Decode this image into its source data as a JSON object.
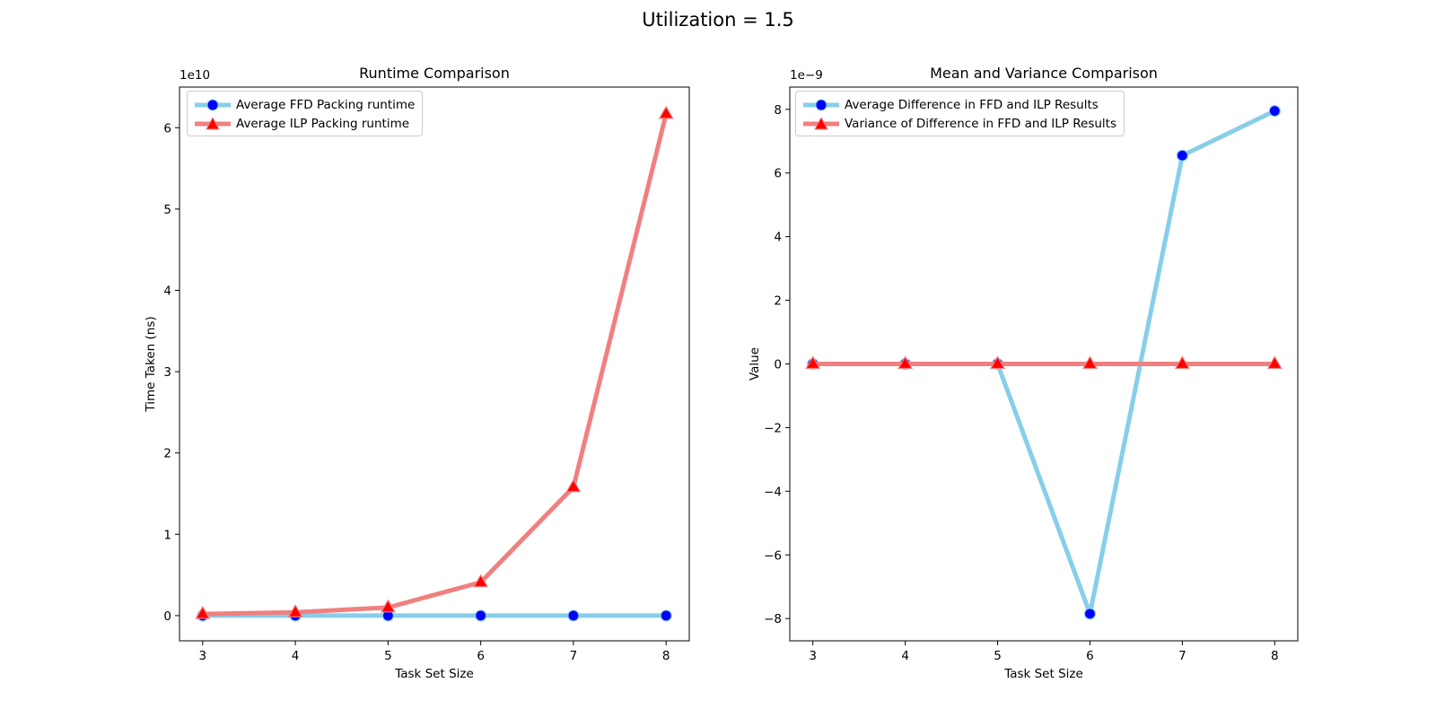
{
  "figure": {
    "title": "Utilization = 1.5"
  },
  "chart_data": [
    {
      "type": "line",
      "title": "Runtime Comparison",
      "xlabel": "Task Set Size",
      "ylabel": "Time Taken (ns)",
      "y_offset_label": "1e10",
      "y_scale": 10000000000.0,
      "x": [
        3,
        4,
        5,
        6,
        7,
        8
      ],
      "xlim": [
        2.75,
        8.25
      ],
      "ylim": [
        -3100000000.0,
        65000000000.0
      ],
      "xticks": [
        3,
        4,
        5,
        6,
        7,
        8
      ],
      "yticks": [
        0,
        10000000000.0,
        20000000000.0,
        30000000000.0,
        40000000000.0,
        50000000000.0,
        60000000000.0
      ],
      "ytick_labels": [
        "0",
        "1",
        "2",
        "3",
        "4",
        "5",
        "6"
      ],
      "grid": false,
      "legend_position": "top-left",
      "series": [
        {
          "name": "Average FFD Packing runtime",
          "color": "#87CEEB",
          "marker": "circle",
          "marker_color": "#0000FF",
          "values": [
            0,
            0,
            0,
            0,
            0,
            0
          ]
        },
        {
          "name": "Average ILP Packing runtime",
          "color": "#F08080",
          "marker": "triangle",
          "marker_color": "#FF0000",
          "values": [
            200000000.0,
            400000000.0,
            1000000000.0,
            4100000000.0,
            15800000000.0,
            61700000000.0
          ]
        }
      ]
    },
    {
      "type": "line",
      "title": "Mean and Variance Comparison",
      "xlabel": "Task Set Size",
      "ylabel": "Value",
      "y_offset_label": "1e−9",
      "y_scale": 1e-09,
      "x": [
        3,
        4,
        5,
        6,
        7,
        8
      ],
      "xlim": [
        2.75,
        8.25
      ],
      "ylim": [
        -8.7e-09,
        8.7e-09
      ],
      "xticks": [
        3,
        4,
        5,
        6,
        7,
        8
      ],
      "yticks": [
        -8e-09,
        -6e-09,
        -4e-09,
        -2e-09,
        0,
        2e-09,
        4e-09,
        6e-09,
        8e-09
      ],
      "ytick_labels": [
        "−8",
        "−6",
        "−4",
        "−2",
        "0",
        "2",
        "4",
        "6",
        "8"
      ],
      "grid": false,
      "legend_position": "top-left",
      "series": [
        {
          "name": "Average Difference in FFD and ILP Results",
          "color": "#87CEEB",
          "marker": "circle",
          "marker_color": "#0000FF",
          "values": [
            0,
            0,
            0,
            -7.85e-09,
            6.55e-09,
            7.95e-09
          ]
        },
        {
          "name": "Variance of Difference in FFD and ILP Results",
          "color": "#F08080",
          "marker": "triangle",
          "marker_color": "#FF0000",
          "values": [
            0,
            0,
            0,
            0,
            0,
            0
          ]
        }
      ]
    }
  ]
}
